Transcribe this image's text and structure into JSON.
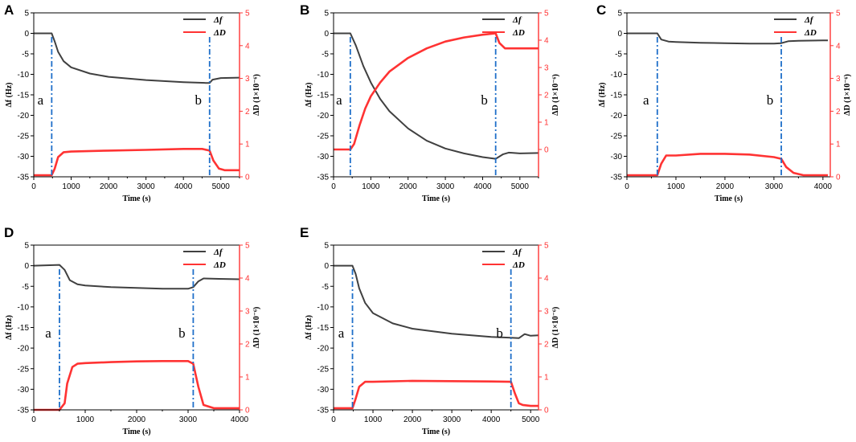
{
  "colors": {
    "df": "#404040",
    "dd": "#ff3333",
    "marker": "#1f6fc9",
    "axis": "#000000",
    "right_axis": "#ff3333"
  },
  "chart_data": [
    {
      "type": "line",
      "panel": "A",
      "xlabel": "Time (s)",
      "ylabel_left": "Δf (Hz)",
      "ylabel_right": "ΔD (1×10⁻⁶)",
      "xlim": [
        0,
        5500
      ],
      "xticks": [
        0,
        1000,
        2000,
        3000,
        4000,
        5000
      ],
      "ylim_left": [
        -35,
        5
      ],
      "yticks_left": [
        5,
        0,
        -5,
        -10,
        -15,
        -20,
        -25,
        -30,
        -35
      ],
      "ylim_right": [
        0,
        5
      ],
      "yticks_right": [
        5,
        4,
        3,
        2,
        1,
        0
      ],
      "legend": [
        "Δf",
        "ΔD"
      ],
      "markers": [
        {
          "label": "a",
          "x": 480
        },
        {
          "label": "b",
          "x": 4700
        }
      ],
      "series": [
        {
          "name": "Δf",
          "axis": "left",
          "x": [
            0,
            480,
            560,
            650,
            800,
            1000,
            1500,
            2000,
            3000,
            4000,
            4600,
            4700,
            4780,
            5000,
            5500
          ],
          "y": [
            0,
            0,
            -2,
            -4.5,
            -6.8,
            -8.3,
            -9.8,
            -10.6,
            -11.4,
            -11.9,
            -12.1,
            -12.1,
            -11.3,
            -10.9,
            -10.8
          ]
        },
        {
          "name": "ΔD",
          "axis": "right",
          "x": [
            0,
            480,
            560,
            650,
            800,
            1000,
            2000,
            3000,
            4000,
            4500,
            4700,
            4800,
            4950,
            5100,
            5500
          ],
          "y": [
            0.05,
            0.05,
            0.25,
            0.6,
            0.75,
            0.77,
            0.8,
            0.82,
            0.85,
            0.85,
            0.8,
            0.5,
            0.25,
            0.2,
            0.2
          ]
        }
      ]
    },
    {
      "type": "line",
      "panel": "B",
      "xlabel": "Time (s)",
      "ylabel_left": "Δf (Hz)",
      "ylabel_right": "ΔD (1×10⁻⁶)",
      "xlim": [
        0,
        5500
      ],
      "xticks": [
        0,
        1000,
        2000,
        3000,
        4000,
        5000
      ],
      "ylim_left": [
        -35,
        5
      ],
      "yticks_left": [
        5,
        0,
        -5,
        -10,
        -15,
        -20,
        -25,
        -30,
        -35
      ],
      "ylim_right": [
        -1,
        5
      ],
      "yticks_right": [
        5,
        4,
        3,
        2,
        1,
        0
      ],
      "legend": [
        "Δf",
        "ΔD"
      ],
      "markers": [
        {
          "label": "a",
          "x": 450
        },
        {
          "label": "b",
          "x": 4350
        }
      ],
      "series": [
        {
          "name": "Δf",
          "axis": "left",
          "x": [
            0,
            450,
            600,
            800,
            1000,
            1250,
            1500,
            2000,
            2500,
            3000,
            3500,
            4000,
            4350,
            4550,
            4700,
            5000,
            5500
          ],
          "y": [
            0,
            0,
            -3,
            -8,
            -12,
            -16,
            -19,
            -23.2,
            -26.2,
            -28.1,
            -29.3,
            -30.2,
            -30.6,
            -29.5,
            -29.1,
            -29.3,
            -29.2
          ]
        },
        {
          "name": "ΔD",
          "axis": "right",
          "x": [
            0,
            450,
            550,
            700,
            850,
            1000,
            1250,
            1500,
            2000,
            2500,
            3000,
            3500,
            4000,
            4350,
            4450,
            4600,
            5000,
            5500
          ],
          "y": [
            0,
            0,
            0.2,
            0.9,
            1.5,
            1.95,
            2.45,
            2.85,
            3.35,
            3.7,
            3.95,
            4.1,
            4.2,
            4.25,
            3.9,
            3.7,
            3.7,
            3.7
          ]
        }
      ]
    },
    {
      "type": "line",
      "panel": "C",
      "xlabel": "Time (s)",
      "ylabel_left": "Δf (Hz)",
      "ylabel_right": "ΔD (1×10⁻⁶)",
      "xlim": [
        0,
        4150
      ],
      "xticks": [
        0,
        1000,
        2000,
        3000,
        4000
      ],
      "ylim_left": [
        -35,
        5
      ],
      "yticks_left": [
        5,
        0,
        -5,
        -10,
        -15,
        -20,
        -25,
        -30,
        -35
      ],
      "ylim_right": [
        0,
        5
      ],
      "yticks_right": [
        5,
        4,
        3,
        2,
        1,
        0
      ],
      "legend": [
        "Δf",
        "ΔD"
      ],
      "markers": [
        {
          "label": "a",
          "x": 620
        },
        {
          "label": "b",
          "x": 3150
        }
      ],
      "series": [
        {
          "name": "Δf",
          "axis": "left",
          "x": [
            0,
            620,
            700,
            850,
            1000,
            1500,
            2000,
            2500,
            3000,
            3150,
            3300,
            3500,
            4000,
            4100
          ],
          "y": [
            0,
            0,
            -1.5,
            -2,
            -2.1,
            -2.3,
            -2.4,
            -2.5,
            -2.5,
            -2.4,
            -1.9,
            -1.8,
            -1.7,
            -1.7
          ]
        },
        {
          "name": "ΔD",
          "axis": "right",
          "x": [
            0,
            620,
            700,
            800,
            1000,
            1500,
            2000,
            2500,
            3000,
            3150,
            3250,
            3400,
            3600,
            4000,
            4100
          ],
          "y": [
            0.05,
            0.05,
            0.4,
            0.65,
            0.65,
            0.7,
            0.7,
            0.68,
            0.6,
            0.55,
            0.3,
            0.12,
            0.05,
            0.05,
            0.05
          ]
        }
      ]
    },
    {
      "type": "line",
      "panel": "D",
      "xlabel": "Time (s)",
      "ylabel_left": "Δf (Hz)",
      "ylabel_right": "ΔD (1×10⁻⁶)",
      "xlim": [
        0,
        4000
      ],
      "xticks": [
        0,
        1000,
        2000,
        3000,
        4000
      ],
      "ylim_left": [
        -35,
        5
      ],
      "yticks_left": [
        5,
        0,
        -5,
        -10,
        -15,
        -20,
        -25,
        -30,
        -35
      ],
      "ylim_right": [
        0,
        5
      ],
      "yticks_right": [
        5,
        4,
        3,
        2,
        1,
        0
      ],
      "legend": [
        "Δf",
        "ΔD"
      ],
      "markers": [
        {
          "label": "a",
          "x": 500
        },
        {
          "label": "b",
          "x": 3100
        }
      ],
      "series": [
        {
          "name": "Δf",
          "axis": "left",
          "x": [
            0,
            500,
            600,
            700,
            850,
            1000,
            1500,
            2000,
            2500,
            3000,
            3100,
            3200,
            3300,
            3600,
            4000
          ],
          "y": [
            0,
            0.2,
            -1,
            -3.5,
            -4.5,
            -4.8,
            -5.2,
            -5.4,
            -5.6,
            -5.6,
            -5.2,
            -3.8,
            -3.1,
            -3.2,
            -3.3
          ]
        },
        {
          "name": "ΔD",
          "axis": "right",
          "x": [
            0,
            500,
            600,
            650,
            750,
            850,
            1000,
            1500,
            2000,
            2500,
            3000,
            3100,
            3200,
            3300,
            3500,
            4000
          ],
          "y": [
            0,
            0,
            0.2,
            0.8,
            1.3,
            1.4,
            1.42,
            1.45,
            1.47,
            1.48,
            1.48,
            1.4,
            0.7,
            0.15,
            0.05,
            0.05
          ]
        }
      ]
    },
    {
      "type": "line",
      "panel": "E",
      "xlabel": "Time (s)",
      "ylabel_left": "Δf (Hz)",
      "ylabel_right": "ΔD (1×10⁻⁶)",
      "xlim": [
        0,
        5200
      ],
      "xticks": [
        0,
        1000,
        2000,
        3000,
        4000,
        5000
      ],
      "ylim_left": [
        -35,
        5
      ],
      "yticks_left": [
        5,
        0,
        -5,
        -10,
        -15,
        -20,
        -25,
        -30,
        -35
      ],
      "ylim_right": [
        0,
        5
      ],
      "yticks_right": [
        5,
        4,
        3,
        2,
        1,
        0
      ],
      "legend": [
        "Δf",
        "ΔD"
      ],
      "markers": [
        {
          "label": "a",
          "x": 480
        },
        {
          "label": "b",
          "x": 4500
        }
      ],
      "series": [
        {
          "name": "Δf",
          "axis": "left",
          "x": [
            0,
            480,
            560,
            650,
            800,
            1000,
            1500,
            2000,
            3000,
            4000,
            4500,
            4700,
            4850,
            5000,
            5200
          ],
          "y": [
            0,
            0,
            -2,
            -5.5,
            -9,
            -11.5,
            -14,
            -15.3,
            -16.5,
            -17.3,
            -17.5,
            -17.6,
            -16.6,
            -17,
            -16.9
          ]
        },
        {
          "name": "ΔD",
          "axis": "right",
          "x": [
            0,
            480,
            550,
            650,
            800,
            1000,
            2000,
            3000,
            4000,
            4500,
            4600,
            4700,
            4800,
            5000,
            5200
          ],
          "y": [
            0.05,
            0.05,
            0.3,
            0.7,
            0.85,
            0.85,
            0.88,
            0.87,
            0.86,
            0.85,
            0.5,
            0.2,
            0.15,
            0.12,
            0.12
          ]
        }
      ]
    }
  ]
}
